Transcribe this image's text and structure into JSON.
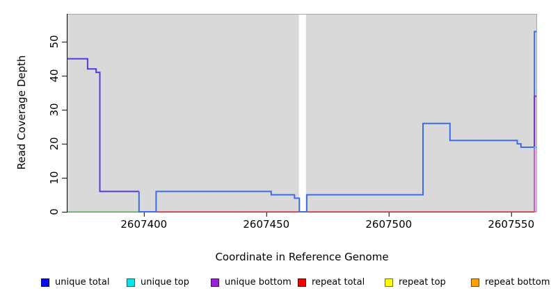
{
  "figure": {
    "background": "#ffffff",
    "panel_bg": "#d9d9d9",
    "panel_border": "#a8a8a8",
    "axis_color": "#000000"
  },
  "chart_data": {
    "type": "line",
    "title": "",
    "xlabel": "Coordinate in Reference Genome",
    "ylabel": "Read Coverage Depth",
    "xlim": [
      2607368.8,
      2607560.3
    ],
    "ylim": [
      0,
      58.2
    ],
    "x_ticks": [
      2607400,
      2607450,
      2607500,
      2607550
    ],
    "y_ticks": [
      0,
      10,
      20,
      30,
      40,
      50
    ],
    "grid": false,
    "reference_gap": {
      "from": 2607463.3,
      "to": 2607466.2,
      "color": "#ffffff"
    },
    "series": [
      {
        "name": "zero-line-green-left",
        "color": "#7dc87d",
        "width": 1.6,
        "points": [
          [
            2607368.8,
            0
          ],
          [
            2607400,
            0
          ]
        ]
      },
      {
        "name": "repeat-total-zero-line",
        "color": "#e04858",
        "width": 1.6,
        "points": [
          [
            2607400,
            0
          ],
          [
            2607559.5,
            0
          ]
        ]
      },
      {
        "name": "repeat-bottom-right-stub",
        "color": "#ffa010",
        "width": 2,
        "points": [
          [
            2607559.5,
            0
          ],
          [
            2607560.3,
            0
          ]
        ]
      },
      {
        "name": "unique-total-and-bottom-overlap-left",
        "color": "#5636e3",
        "width": 2,
        "points": [
          [
            2607368.8,
            45
          ],
          [
            2607377,
            45
          ],
          [
            2607377,
            42
          ],
          [
            2607380.5,
            42
          ],
          [
            2607380.5,
            41
          ],
          [
            2607382,
            41
          ],
          [
            2607382,
            6
          ],
          [
            2607398,
            6
          ]
        ]
      },
      {
        "name": "unique-total",
        "color": "#3c6ceb",
        "width": 2,
        "points": [
          [
            2607398,
            6
          ],
          [
            2607398,
            0
          ],
          [
            2607405,
            0
          ],
          [
            2607405,
            6
          ],
          [
            2607452,
            6
          ],
          [
            2607452,
            5
          ],
          [
            2607461.5,
            5
          ],
          [
            2607461.5,
            4
          ],
          [
            2607463.5,
            4
          ],
          [
            2607463.5,
            0
          ],
          [
            2607466.5,
            0
          ],
          [
            2607466.5,
            5
          ],
          [
            2607514,
            5
          ],
          [
            2607514,
            26
          ],
          [
            2607525,
            26
          ],
          [
            2607525,
            21
          ],
          [
            2607552.5,
            21
          ],
          [
            2607552.5,
            20
          ],
          [
            2607554,
            20
          ],
          [
            2607554,
            19
          ],
          [
            2607559.5,
            19
          ],
          [
            2607559.5,
            53
          ],
          [
            2607560.3,
            53
          ]
        ]
      },
      {
        "name": "unique-bottom-right-spike",
        "color": "#7a2bd4",
        "width": 2,
        "points": [
          [
            2607559.5,
            0
          ],
          [
            2607559.5,
            34
          ],
          [
            2607560.3,
            34
          ]
        ]
      },
      {
        "name": "magenta-right-spike-overlap",
        "color": "#cf5fd8",
        "width": 2,
        "points": [
          [
            2607559.5,
            0
          ],
          [
            2607559.5,
            19
          ]
        ]
      },
      {
        "name": "unique-top-right-tick",
        "color": "#3adadc",
        "width": 2,
        "points": [
          [
            2607559.5,
            19
          ],
          [
            2607560.3,
            19
          ]
        ]
      }
    ],
    "legend_position": "bottom"
  },
  "legend": {
    "items": [
      {
        "label": "unique total",
        "color": "#0a0af0"
      },
      {
        "label": "unique top",
        "color": "#00e8e8"
      },
      {
        "label": "unique bottom",
        "color": "#9a1fd8"
      },
      {
        "label": "repeat total",
        "color": "#f00000"
      },
      {
        "label": "repeat top",
        "color": "#ffff00"
      },
      {
        "label": "repeat bottom",
        "color": "#ffa000"
      }
    ]
  }
}
